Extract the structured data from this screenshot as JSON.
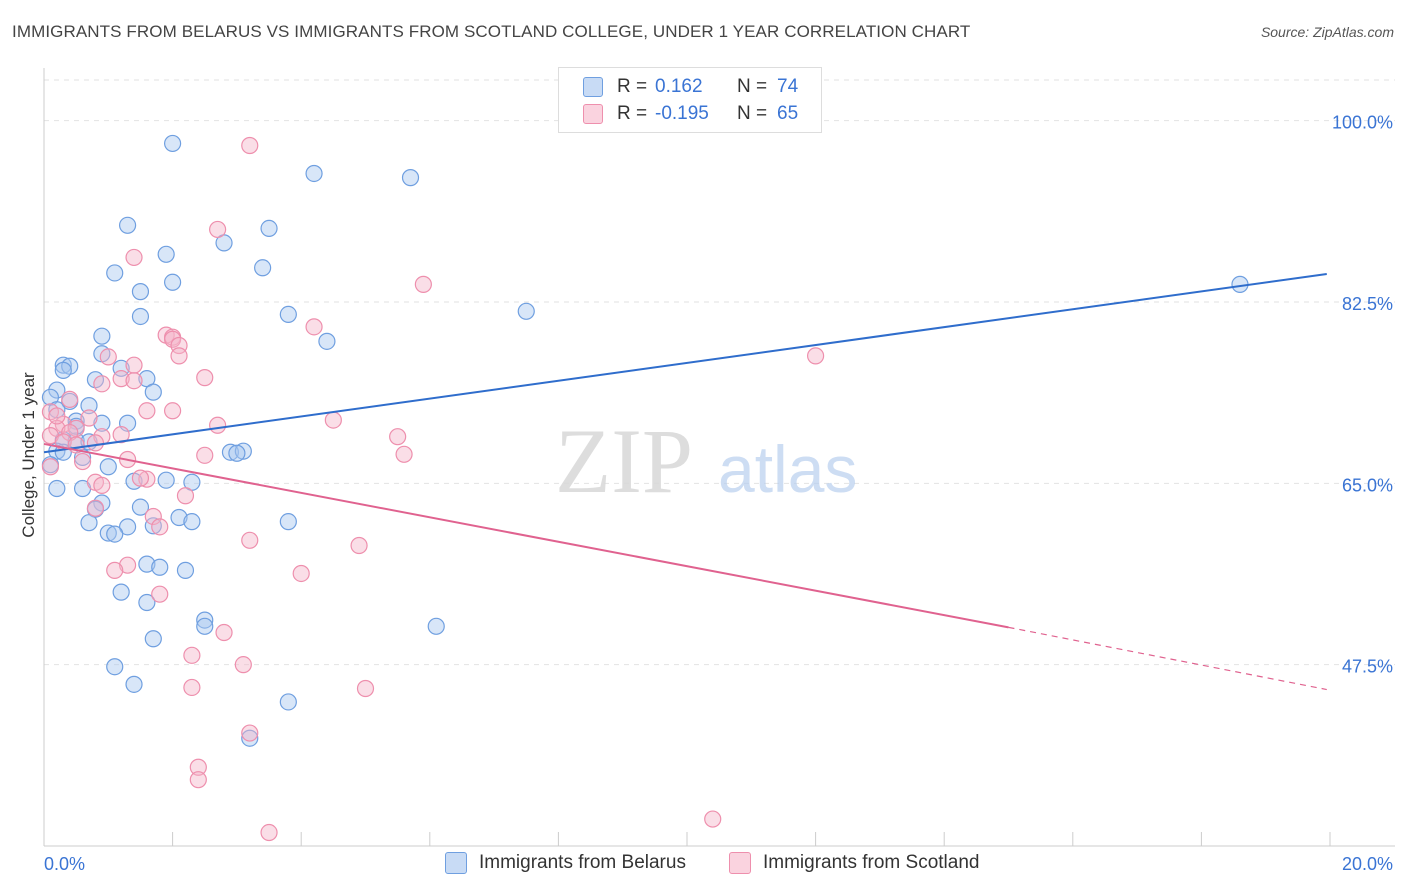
{
  "title": "IMMIGRANTS FROM BELARUS VS IMMIGRANTS FROM SCOTLAND COLLEGE, UNDER 1 YEAR CORRELATION CHART",
  "source": "Source: ZipAtlas.com",
  "watermark": {
    "zip": "ZIP",
    "atlas": "atlas"
  },
  "stats": [
    {
      "r_label": "R =",
      "r_value": "0.162",
      "n_label": "N =",
      "n_value": "74",
      "color": "#a9c7ef"
    },
    {
      "r_label": "R =",
      "r_value": "-0.195",
      "n_label": "N =",
      "n_value": "65",
      "color": "#f5b6c9"
    }
  ],
  "legend": [
    {
      "label": "Immigrants from Belarus",
      "color": "#a9c7ef"
    },
    {
      "label": "Immigrants from Scotland",
      "color": "#f5b6c9"
    }
  ],
  "chart_data": {
    "type": "scatter",
    "title": "IMMIGRANTS FROM BELARUS VS IMMIGRANTS FROM SCOTLAND COLLEGE, UNDER 1 YEAR CORRELATION CHART",
    "xlabel": "",
    "ylabel": "College, Under 1 year",
    "xlim": [
      0,
      20
    ],
    "ylim": [
      30,
      104.5
    ],
    "x_tick_labels": [
      "0.0%",
      "20.0%"
    ],
    "y_ticks": [
      47.5,
      65.0,
      82.5,
      100.0
    ],
    "y_tick_labels": [
      "47.5%",
      "65.0%",
      "82.5%",
      "100.0%"
    ],
    "series": [
      {
        "name": "Immigrants from Belarus",
        "color": "#6f9fe0",
        "fill": "#a9c7ef",
        "line_color": "#2f6dcc",
        "trend": {
          "x0": 0,
          "y0": 68.0,
          "x1": 19.95,
          "y1": 85.2
        },
        "points": [
          [
            2.0,
            97.8
          ],
          [
            4.2,
            94.9
          ],
          [
            5.7,
            94.5
          ],
          [
            1.3,
            89.9
          ],
          [
            3.5,
            89.6
          ],
          [
            2.8,
            88.2
          ],
          [
            1.9,
            87.1
          ],
          [
            3.4,
            85.8
          ],
          [
            1.1,
            85.3
          ],
          [
            2.0,
            84.4
          ],
          [
            1.5,
            83.5
          ],
          [
            18.6,
            84.2
          ],
          [
            7.5,
            81.6
          ],
          [
            3.8,
            81.3
          ],
          [
            1.5,
            81.1
          ],
          [
            0.9,
            79.2
          ],
          [
            4.4,
            78.7
          ],
          [
            0.9,
            77.5
          ],
          [
            0.3,
            76.4
          ],
          [
            0.4,
            76.3
          ],
          [
            1.2,
            76.1
          ],
          [
            0.3,
            75.9
          ],
          [
            0.8,
            75.0
          ],
          [
            1.6,
            75.1
          ],
          [
            0.2,
            74.0
          ],
          [
            1.7,
            73.8
          ],
          [
            0.1,
            73.3
          ],
          [
            0.4,
            72.9
          ],
          [
            0.7,
            72.5
          ],
          [
            0.5,
            71.0
          ],
          [
            1.3,
            70.8
          ],
          [
            0.9,
            70.8
          ],
          [
            0.3,
            69.2
          ],
          [
            0.5,
            69.1
          ],
          [
            0.7,
            69.0
          ],
          [
            0.2,
            68.1
          ],
          [
            0.3,
            68.0
          ],
          [
            0.6,
            67.5
          ],
          [
            2.9,
            68.0
          ],
          [
            3.1,
            68.1
          ],
          [
            3.0,
            67.9
          ],
          [
            1.0,
            66.6
          ],
          [
            1.9,
            65.3
          ],
          [
            1.4,
            65.2
          ],
          [
            2.3,
            65.1
          ],
          [
            0.2,
            64.5
          ],
          [
            0.6,
            64.5
          ],
          [
            0.9,
            63.1
          ],
          [
            0.8,
            62.5
          ],
          [
            2.1,
            61.7
          ],
          [
            2.3,
            61.3
          ],
          [
            1.3,
            60.8
          ],
          [
            0.7,
            61.2
          ],
          [
            1.0,
            60.2
          ],
          [
            1.1,
            60.1
          ],
          [
            1.7,
            60.9
          ],
          [
            3.8,
            61.3
          ],
          [
            1.6,
            57.2
          ],
          [
            1.8,
            56.9
          ],
          [
            2.2,
            56.6
          ],
          [
            1.2,
            54.5
          ],
          [
            1.6,
            53.5
          ],
          [
            2.5,
            51.8
          ],
          [
            6.1,
            51.2
          ],
          [
            2.5,
            51.2
          ],
          [
            1.7,
            50.0
          ],
          [
            1.1,
            47.3
          ],
          [
            1.4,
            45.6
          ],
          [
            3.8,
            43.9
          ],
          [
            3.2,
            40.4
          ],
          [
            0.1,
            66.8
          ],
          [
            0.2,
            72.1
          ],
          [
            0.5,
            70.5
          ],
          [
            1.5,
            62.7
          ]
        ]
      },
      {
        "name": "Immigrants from Scotland",
        "color": "#ee8fad",
        "fill": "#f5b6c9",
        "line_color": "#e0628f",
        "trend": {
          "x0": 0,
          "y0": 68.8,
          "x1": 15.0,
          "y1": 51.1
        },
        "trend_dashed": {
          "x0": 15.0,
          "y0": 51.1,
          "x1": 19.95,
          "y1": 45.1
        },
        "points": [
          [
            3.2,
            97.6
          ],
          [
            2.7,
            89.5
          ],
          [
            1.4,
            86.8
          ],
          [
            5.9,
            84.2
          ],
          [
            4.2,
            80.1
          ],
          [
            1.9,
            79.3
          ],
          [
            2.0,
            79.1
          ],
          [
            2.0,
            78.9
          ],
          [
            2.1,
            78.3
          ],
          [
            2.1,
            77.3
          ],
          [
            1.0,
            77.2
          ],
          [
            12.0,
            77.3
          ],
          [
            1.4,
            76.4
          ],
          [
            1.2,
            75.1
          ],
          [
            1.4,
            74.9
          ],
          [
            2.5,
            75.2
          ],
          [
            0.9,
            74.6
          ],
          [
            0.4,
            73.1
          ],
          [
            1.6,
            72.0
          ],
          [
            2.0,
            72.0
          ],
          [
            0.1,
            71.9
          ],
          [
            0.7,
            71.3
          ],
          [
            4.5,
            71.1
          ],
          [
            2.7,
            70.6
          ],
          [
            0.3,
            70.7
          ],
          [
            0.5,
            70.3
          ],
          [
            0.2,
            70.3
          ],
          [
            0.4,
            69.9
          ],
          [
            1.2,
            69.7
          ],
          [
            0.9,
            69.5
          ],
          [
            5.5,
            69.5
          ],
          [
            0.1,
            69.6
          ],
          [
            0.3,
            69.0
          ],
          [
            0.8,
            68.9
          ],
          [
            0.5,
            68.7
          ],
          [
            5.6,
            67.8
          ],
          [
            2.5,
            67.7
          ],
          [
            1.3,
            67.3
          ],
          [
            0.6,
            67.1
          ],
          [
            0.1,
            66.6
          ],
          [
            1.6,
            65.4
          ],
          [
            0.8,
            65.1
          ],
          [
            0.9,
            64.8
          ],
          [
            2.2,
            63.8
          ],
          [
            0.8,
            62.6
          ],
          [
            1.7,
            61.8
          ],
          [
            1.8,
            60.8
          ],
          [
            3.2,
            59.5
          ],
          [
            4.9,
            59.0
          ],
          [
            1.3,
            57.1
          ],
          [
            1.1,
            56.6
          ],
          [
            4.0,
            56.3
          ],
          [
            1.8,
            54.3
          ],
          [
            2.8,
            50.6
          ],
          [
            2.3,
            48.4
          ],
          [
            3.1,
            47.5
          ],
          [
            2.3,
            45.3
          ],
          [
            5.0,
            45.2
          ],
          [
            3.2,
            40.9
          ],
          [
            2.4,
            37.6
          ],
          [
            2.4,
            36.4
          ],
          [
            3.5,
            31.3
          ],
          [
            10.4,
            32.6
          ],
          [
            1.5,
            65.5
          ],
          [
            0.2,
            71.5
          ]
        ]
      }
    ]
  }
}
